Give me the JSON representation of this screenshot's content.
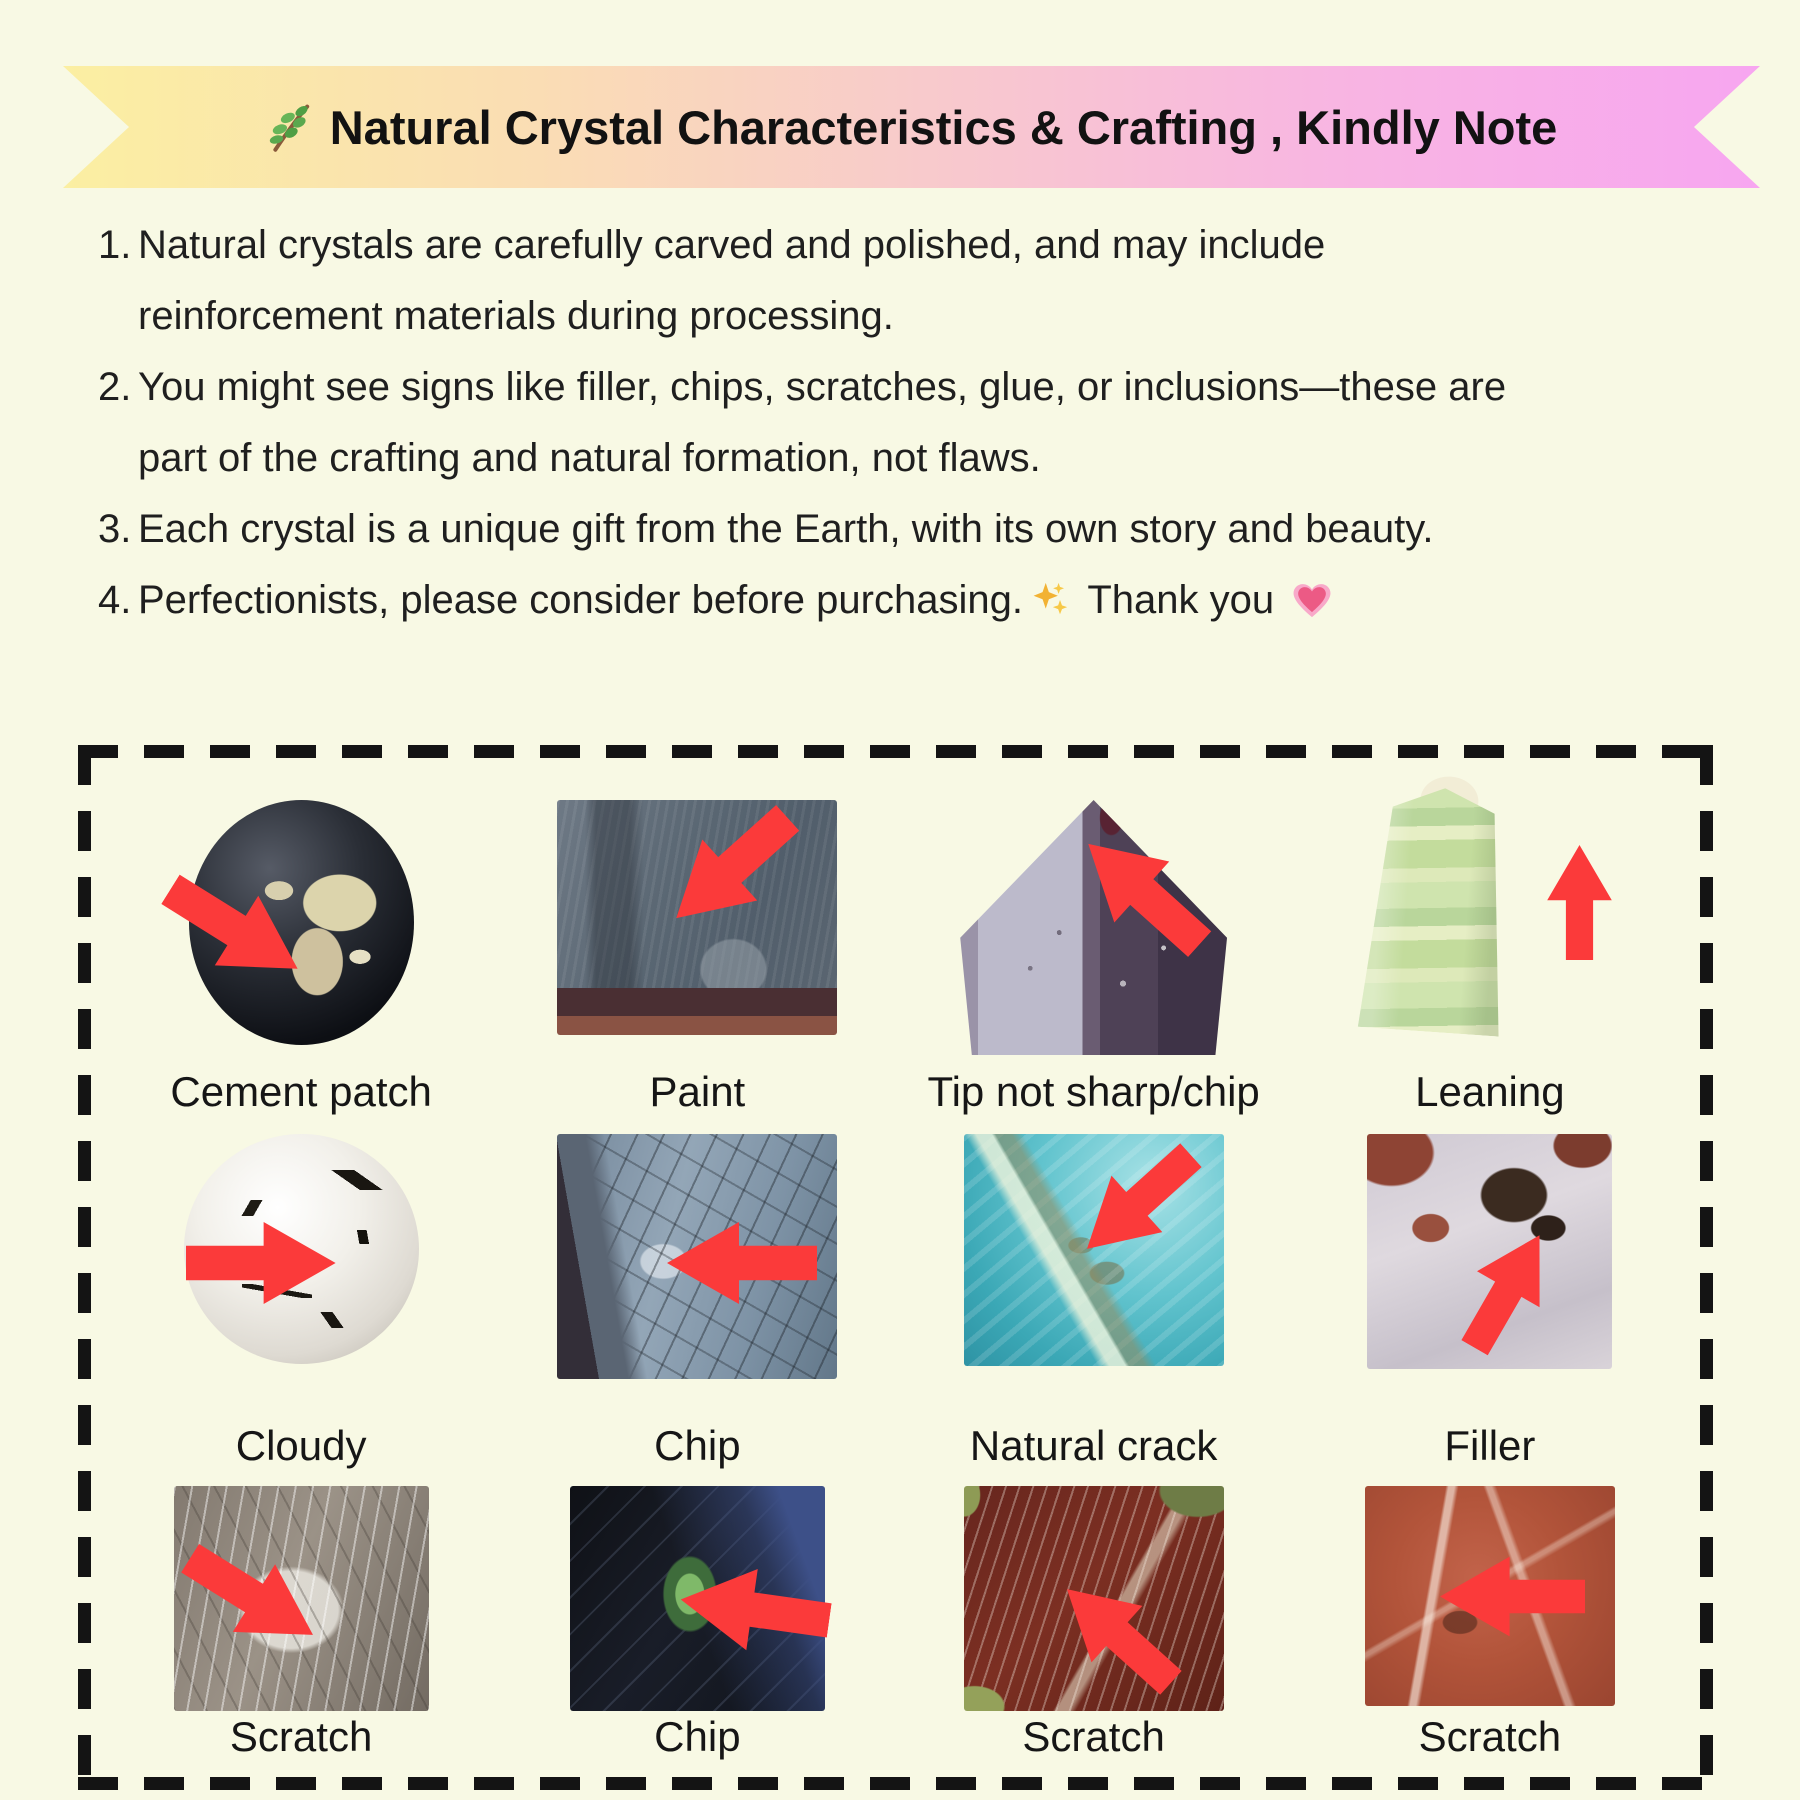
{
  "page": {
    "background_color": "#F8F9E4",
    "text_color": "#1F1F1F",
    "border_color": "#141414",
    "arrow_color": "#FB3A3A"
  },
  "header": {
    "icon": "🌿",
    "title": "Natural Crystal Characteristics & Crafting , Kindly Note",
    "ribbon_gradient": [
      "#FBEFA2",
      "#F8C9CD",
      "#F7A6F0"
    ]
  },
  "notes": {
    "items": [
      {
        "number": "1.",
        "lines": [
          "Natural crystals are carefully carved and polished, and may include",
          "reinforcement materials during processing."
        ]
      },
      {
        "number": "2.",
        "lines": [
          "You might see signs like filler, chips, scratches, glue, or inclusions—these are",
          "part of the crafting and natural formation, not flaws."
        ]
      },
      {
        "number": "3.",
        "lines": [
          "Each crystal is a unique gift from the Earth, with its own story and beauty."
        ]
      },
      {
        "number": "4.",
        "lines": [
          "Perfectionists, please consider before purchasing.✨  Thank you 💗"
        ]
      }
    ]
  },
  "gallery": {
    "items": [
      {
        "label": "Cement patch",
        "image": "dark-sphere-with-cement-patch",
        "arrow_direction": "down-right"
      },
      {
        "label": "Paint",
        "image": "gray-slab-with-paint",
        "arrow_direction": "down-left"
      },
      {
        "label": "Tip not sharp/chip",
        "image": "amethyst-pyramid-tip",
        "arrow_direction": "up-left"
      },
      {
        "label": "Leaning",
        "image": "green-banded-tower-leaning",
        "arrow_direction": "up"
      },
      {
        "label": "Cloudy",
        "image": "white-sphere-with-inclusions",
        "arrow_direction": "right"
      },
      {
        "label": "Chip",
        "image": "blue-gray-cracked-stone",
        "arrow_direction": "left"
      },
      {
        "label": "Natural crack",
        "image": "teal-stone-with-crack",
        "arrow_direction": "down-left"
      },
      {
        "label": "Filler",
        "image": "agate-with-filler",
        "arrow_direction": "up-right"
      },
      {
        "label": "Scratch",
        "image": "gray-stone-scratches",
        "arrow_direction": "down-right"
      },
      {
        "label": "Chip",
        "image": "dark-labradorite-chip",
        "arrow_direction": "left-down"
      },
      {
        "label": "Scratch",
        "image": "red-jasper-green-scratches",
        "arrow_direction": "up-left"
      },
      {
        "label": "Scratch",
        "image": "red-jasper-scratches",
        "arrow_direction": "left"
      }
    ]
  }
}
